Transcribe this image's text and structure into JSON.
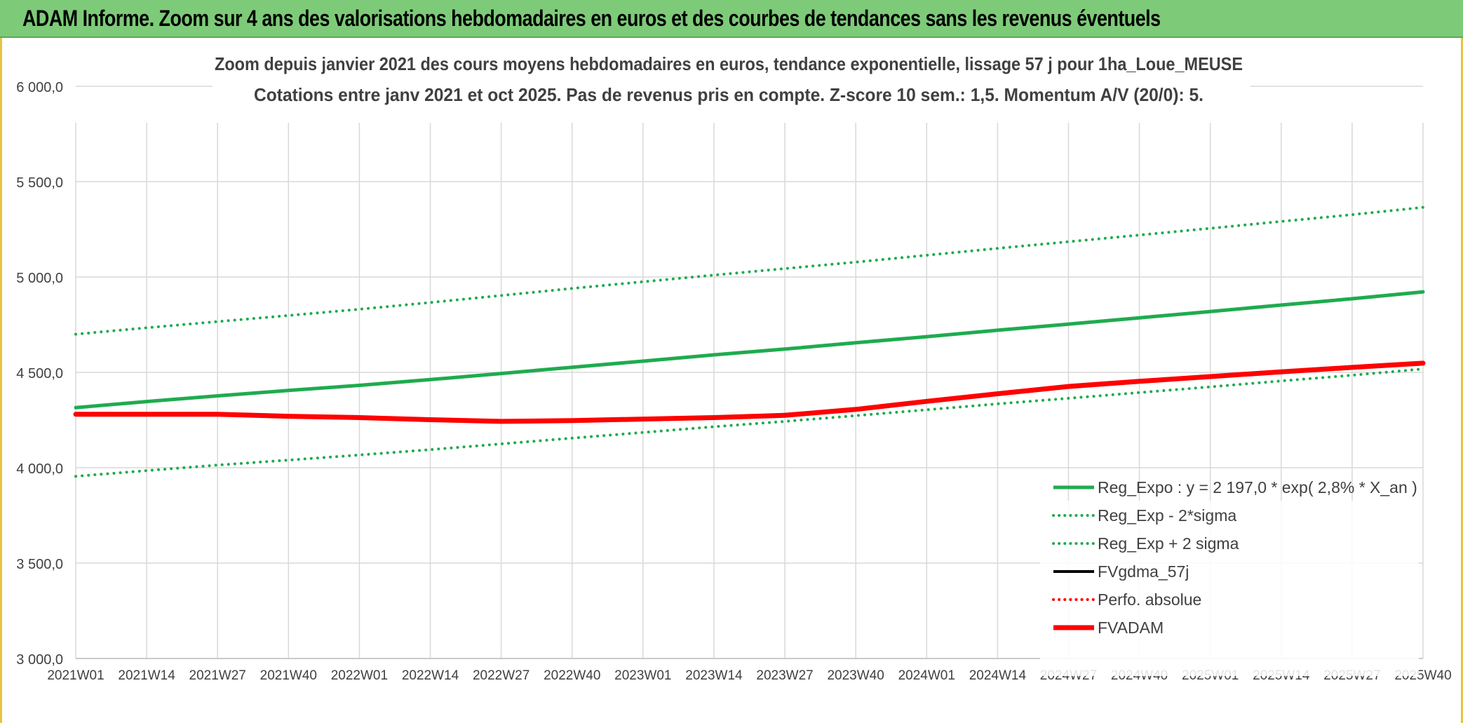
{
  "banner": {
    "title": "ADAM Informe. Zoom sur 4 ans des valorisations hebdomadaires en euros et des courbes de tendances sans les revenus éventuels"
  },
  "colors": {
    "banner_bg": "#7dcb78",
    "green": "#1fab4f",
    "red": "#ff0000",
    "black": "#000000",
    "grid": "#d9d9d9",
    "frame_accent": "#e8c341"
  },
  "chart_data": {
    "type": "line",
    "title": "Zoom depuis janvier 2021 des cours moyens hebdomadaires en euros, tendance exponentielle, lissage 57 j pour 1ha_Loue_MEUSE",
    "subtitle": "Cotations entre janv 2021 et oct 2025. Pas de revenus pris en compte. Z-score 10 sem.: 1,5. Momentum A/V (20/0): 5.",
    "xlabel": "",
    "ylabel": "",
    "ylim": [
      3000,
      6000
    ],
    "grid": true,
    "legend_position": "bottom-right",
    "x_categories": [
      "2021W01",
      "2021W14",
      "2021W27",
      "2021W40",
      "2022W01",
      "2022W14",
      "2022W27",
      "2022W40",
      "2023W01",
      "2023W14",
      "2023W27",
      "2023W40",
      "2024W01",
      "2024W14",
      "2024W27",
      "2024W40",
      "2025W01",
      "2025W14",
      "2025W27",
      "2025W40"
    ],
    "y_ticks": [
      {
        "value": 3000,
        "label": "3 000,0"
      },
      {
        "value": 3500,
        "label": "3 500,0"
      },
      {
        "value": 4000,
        "label": "4 000,0"
      },
      {
        "value": 4500,
        "label": "4 500,0"
      },
      {
        "value": 5000,
        "label": "5 000,0"
      },
      {
        "value": 5500,
        "label": "5 500,0"
      },
      {
        "value": 6000,
        "label": "6 000,0"
      }
    ],
    "series": [
      {
        "name": "Reg_Expo : y = 2 197,0 * exp( 2,8% *  X_an )",
        "style": "solid",
        "color": "#1fab4f",
        "width": 5,
        "values": [
          4315,
          4347,
          4377,
          4405,
          4432,
          4462,
          4494,
          4527,
          4559,
          4592,
          4622,
          4655,
          4687,
          4721,
          4753,
          4786,
          4819,
          4853,
          4886,
          4922
        ]
      },
      {
        "name": "Reg_Exp - 2*sigma",
        "style": "dotted",
        "color": "#1fab4f",
        "width": 4,
        "values": [
          3955,
          3985,
          4014,
          4040,
          4067,
          4095,
          4125,
          4155,
          4185,
          4215,
          4243,
          4273,
          4304,
          4335,
          4364,
          4394,
          4424,
          4455,
          4485,
          4518
        ]
      },
      {
        "name": "Reg_Exp + 2 sigma",
        "style": "dotted",
        "color": "#1fab4f",
        "width": 4,
        "values": [
          4700,
          4734,
          4766,
          4798,
          4831,
          4866,
          4903,
          4940,
          4975,
          5010,
          5044,
          5078,
          5114,
          5150,
          5185,
          5220,
          5255,
          5291,
          5327,
          5365
        ]
      },
      {
        "name": "FVgdma_57j",
        "style": "solid",
        "color": "#000000",
        "width": 3,
        "values": [
          4280,
          4280,
          4282,
          4272,
          4265,
          4255,
          4245,
          4248,
          4256,
          4264,
          4282,
          4310,
          4350,
          4390,
          4428,
          4455,
          4480,
          4505,
          4528,
          4548
        ]
      },
      {
        "name": "Perfo. absolue",
        "style": "dotted",
        "color": "#ff0000",
        "width": 3,
        "values": [
          4280,
          4280,
          4281,
          4271,
          4264,
          4254,
          4244,
          4247,
          4255,
          4263,
          4279,
          4308,
          4349,
          4389,
          4427,
          4454,
          4479,
          4504,
          4527,
          4547
        ]
      },
      {
        "name": "FVADAM",
        "style": "solid",
        "color": "#ff0000",
        "width": 7,
        "values": [
          4280,
          4280,
          4280,
          4270,
          4263,
          4252,
          4243,
          4247,
          4255,
          4263,
          4275,
          4306,
          4348,
          4388,
          4426,
          4453,
          4478,
          4503,
          4526,
          4548
        ]
      }
    ]
  }
}
